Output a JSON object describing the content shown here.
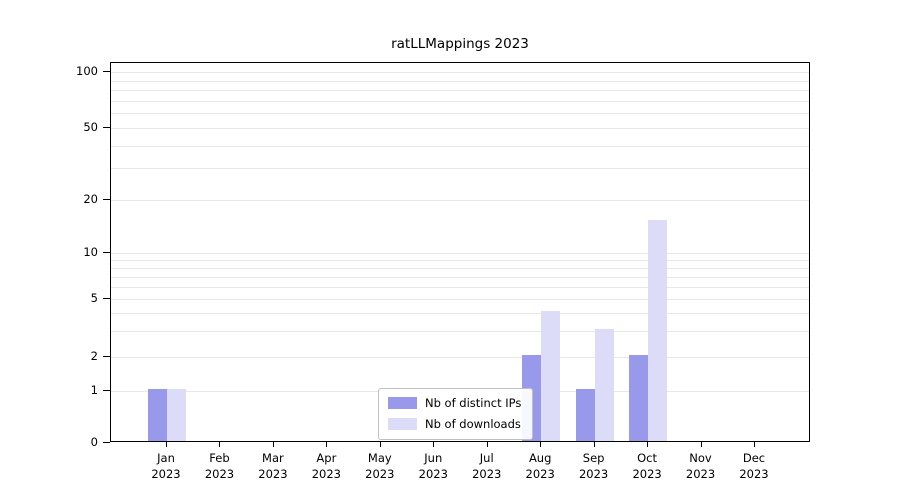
{
  "chart_data": {
    "type": "bar",
    "title": "ratLLMappings 2023",
    "categories": [
      "Jan 2023",
      "Feb 2023",
      "Mar 2023",
      "Apr 2023",
      "May 2023",
      "Jun 2023",
      "Jul 2023",
      "Aug 2023",
      "Sep 2023",
      "Oct 2023",
      "Nov 2023",
      "Dec 2023"
    ],
    "series": [
      {
        "name": "Nb of distinct IPs",
        "color": "#9999ec",
        "values": [
          1,
          0,
          0,
          0,
          0,
          0,
          0,
          2,
          1,
          2,
          0,
          0
        ]
      },
      {
        "name": "Nb of downloads",
        "color": "#dcdcf8",
        "values": [
          1,
          0,
          0,
          0,
          0,
          0,
          0,
          4,
          3,
          15,
          0,
          0
        ]
      }
    ],
    "yticks": [
      0,
      1,
      2,
      5,
      10,
      20,
      50,
      100
    ],
    "ylim": [
      0,
      100
    ],
    "yscale": "symlog",
    "grid": "horizontal-minor",
    "legend_position": "lower-center",
    "xlabel": "",
    "ylabel": ""
  }
}
